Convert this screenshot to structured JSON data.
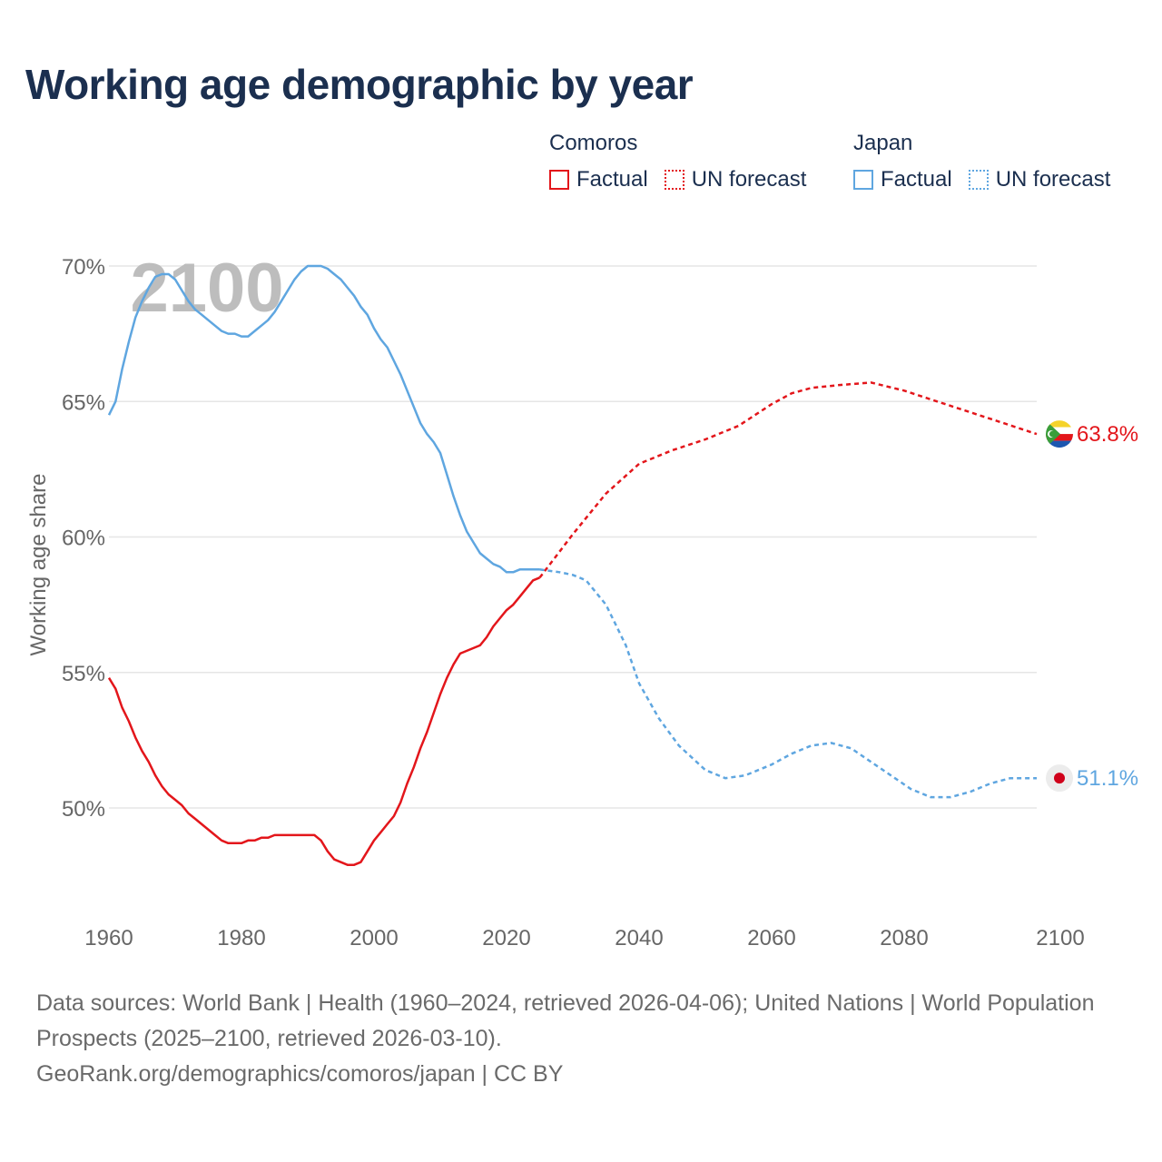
{
  "title": "Working age demographic by year",
  "legend": {
    "groups": [
      {
        "country": "Comoros",
        "factual_label": "Factual",
        "forecast_label": "UN forecast",
        "color": "#e3161b"
      },
      {
        "country": "Japan",
        "factual_label": "Factual",
        "forecast_label": "UN forecast",
        "color": "#5fa6e0"
      }
    ]
  },
  "chart_data": {
    "type": "line",
    "title": "Working age demographic by year",
    "xlabel": "",
    "ylabel": "Working age share",
    "xlim": [
      1960,
      2100
    ],
    "ylim": [
      46.0,
      70.5
    ],
    "x_ticks": [
      1960,
      1980,
      2000,
      2020,
      2040,
      2060,
      2080,
      2100
    ],
    "y_ticks": [
      50,
      55,
      60,
      65,
      70
    ],
    "y_tick_labels": [
      "50%",
      "55%",
      "60%",
      "65%",
      "70%"
    ],
    "grid": true,
    "year_watermark": "2100",
    "series": [
      {
        "name": "Comoros",
        "color": "#e3161b",
        "end_label": "63.8%",
        "end_icon": "comoros-flag-icon",
        "factual": {
          "x": [
            1960,
            1961,
            1962,
            1963,
            1964,
            1965,
            1966,
            1967,
            1968,
            1969,
            1970,
            1971,
            1972,
            1973,
            1974,
            1975,
            1976,
            1977,
            1978,
            1979,
            1980,
            1981,
            1982,
            1983,
            1984,
            1985,
            1986,
            1987,
            1988,
            1989,
            1990,
            1991,
            1992,
            1993,
            1994,
            1995,
            1996,
            1997,
            1998,
            1999,
            2000,
            2001,
            2002,
            2003,
            2004,
            2005,
            2006,
            2007,
            2008,
            2009,
            2010,
            2011,
            2012,
            2013,
            2014,
            2015,
            2016,
            2017,
            2018,
            2019,
            2020,
            2021,
            2022,
            2023,
            2024,
            2025
          ],
          "y": [
            54.8,
            54.4,
            53.7,
            53.2,
            52.6,
            52.1,
            51.7,
            51.2,
            50.8,
            50.5,
            50.3,
            50.1,
            49.8,
            49.6,
            49.4,
            49.2,
            49.0,
            48.8,
            48.7,
            48.7,
            48.7,
            48.8,
            48.8,
            48.9,
            48.9,
            49.0,
            49.0,
            49.0,
            49.0,
            49.0,
            49.0,
            49.0,
            48.8,
            48.4,
            48.1,
            48.0,
            47.9,
            47.9,
            48.0,
            48.4,
            48.8,
            49.1,
            49.4,
            49.7,
            50.2,
            50.9,
            51.5,
            52.2,
            52.8,
            53.5,
            54.2,
            54.8,
            55.3,
            55.7,
            55.8,
            55.9,
            56.0,
            56.3,
            56.7,
            57.0,
            57.3,
            57.5,
            57.8,
            58.1,
            58.4,
            58.5
          ]
        },
        "forecast": {
          "x": [
            2025,
            2030,
            2035,
            2040,
            2045,
            2050,
            2055,
            2060,
            2063,
            2066,
            2070,
            2075,
            2080,
            2085,
            2090,
            2095,
            2100
          ],
          "y": [
            58.5,
            60.1,
            61.6,
            62.7,
            63.2,
            63.6,
            64.1,
            64.9,
            65.3,
            65.5,
            65.6,
            65.7,
            65.4,
            65.0,
            64.6,
            64.2,
            63.8
          ]
        }
      },
      {
        "name": "Japan",
        "color": "#5fa6e0",
        "end_label": "51.1%",
        "end_icon": "japan-flag-icon",
        "factual": {
          "x": [
            1960,
            1961,
            1962,
            1963,
            1964,
            1965,
            1966,
            1967,
            1968,
            1969,
            1970,
            1971,
            1972,
            1973,
            1974,
            1975,
            1976,
            1977,
            1978,
            1979,
            1980,
            1981,
            1982,
            1983,
            1984,
            1985,
            1986,
            1987,
            1988,
            1989,
            1990,
            1991,
            1992,
            1993,
            1994,
            1995,
            1996,
            1997,
            1998,
            1999,
            2000,
            2001,
            2002,
            2003,
            2004,
            2005,
            2006,
            2007,
            2008,
            2009,
            2010,
            2011,
            2012,
            2013,
            2014,
            2015,
            2016,
            2017,
            2018,
            2019,
            2020,
            2021,
            2022,
            2023,
            2024,
            2025
          ],
          "y": [
            64.5,
            65.0,
            66.2,
            67.2,
            68.1,
            68.7,
            69.2,
            69.6,
            69.7,
            69.7,
            69.5,
            69.1,
            68.7,
            68.4,
            68.2,
            68.0,
            67.8,
            67.6,
            67.5,
            67.5,
            67.4,
            67.4,
            67.6,
            67.8,
            68.0,
            68.3,
            68.7,
            69.1,
            69.5,
            69.8,
            70.0,
            70.0,
            70.0,
            69.9,
            69.7,
            69.5,
            69.2,
            68.9,
            68.5,
            68.2,
            67.7,
            67.3,
            67.0,
            66.5,
            66.0,
            65.4,
            64.8,
            64.2,
            63.8,
            63.5,
            63.1,
            62.3,
            61.5,
            60.8,
            60.2,
            59.8,
            59.4,
            59.2,
            59.0,
            58.9,
            58.7,
            58.7,
            58.8,
            58.8,
            58.8,
            58.8
          ]
        },
        "forecast": {
          "x": [
            2025,
            2028,
            2030,
            2032,
            2035,
            2038,
            2040,
            2043,
            2046,
            2050,
            2053,
            2056,
            2060,
            2063,
            2066,
            2069,
            2072,
            2075,
            2078,
            2081,
            2084,
            2087,
            2090,
            2093,
            2096,
            2100
          ],
          "y": [
            58.8,
            58.7,
            58.6,
            58.4,
            57.5,
            56.0,
            54.6,
            53.3,
            52.3,
            51.4,
            51.1,
            51.2,
            51.6,
            52.0,
            52.3,
            52.4,
            52.2,
            51.7,
            51.2,
            50.7,
            50.4,
            50.4,
            50.6,
            50.9,
            51.1,
            51.1
          ]
        }
      }
    ]
  },
  "footer": {
    "line1": "Data sources: World Bank | Health (1960–2024, retrieved 2026-04-06); United Nations | World Population Prospects (2025–2100, retrieved 2026-03-10).",
    "line2": "GeoRank.org/demographics/comoros/japan | CC BY"
  }
}
